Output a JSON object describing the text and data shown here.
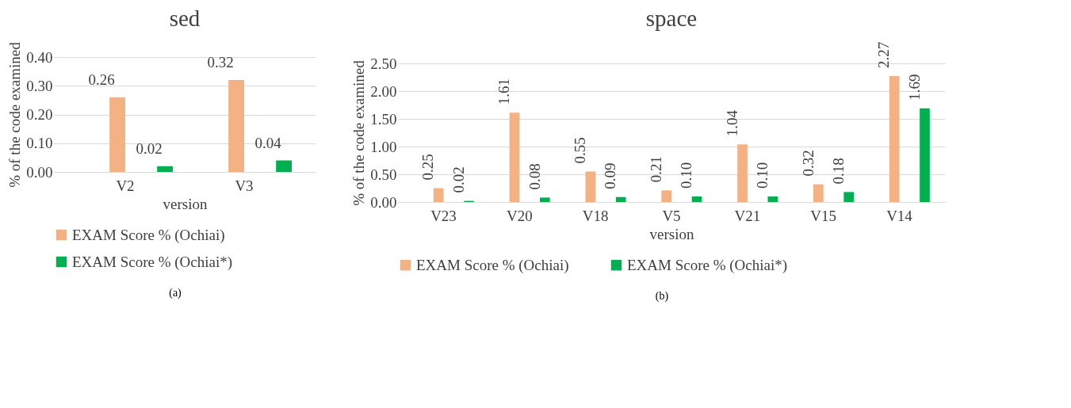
{
  "chart_data": [
    {
      "type": "bar",
      "title": "sed",
      "xlabel": "version",
      "ylabel": "% of the code examined",
      "categories": [
        "V2",
        "V3"
      ],
      "series": [
        {
          "name": "EXAM Score % (Ochiai)",
          "color": "#f4b183",
          "values": [
            0.26,
            0.32
          ],
          "value_labels": [
            "0.26",
            "0.32"
          ]
        },
        {
          "name": "EXAM Score % (Ochiai*)",
          "color": "#00b050",
          "values": [
            0.02,
            0.04
          ],
          "value_labels": [
            "0.02",
            "0.04"
          ]
        }
      ],
      "ylim": [
        0,
        0.4
      ],
      "yticks": [
        {
          "value": 0,
          "label": "0.00"
        },
        {
          "value": 0.1,
          "label": "0.10"
        },
        {
          "value": 0.2,
          "label": "0.20"
        },
        {
          "value": 0.3,
          "label": "0.30"
        },
        {
          "value": 0.4,
          "label": "0.40"
        }
      ],
      "grid": "y",
      "legend": "bottom",
      "annotations": [
        "(a)"
      ]
    },
    {
      "type": "bar",
      "title": "space",
      "xlabel": "version",
      "ylabel": "% of the code examined",
      "categories": [
        "V23",
        "V20",
        "V18",
        "V5",
        "V21",
        "V15",
        "V14"
      ],
      "series": [
        {
          "name": "EXAM Score % (Ochiai)",
          "color": "#f4b183",
          "values": [
            0.25,
            1.61,
            0.55,
            0.21,
            1.04,
            0.32,
            2.27
          ],
          "value_labels": [
            "0.25",
            "1.61",
            "0.55",
            "0.21",
            "1.04",
            "0.32",
            "2.27"
          ]
        },
        {
          "name": "EXAM Score % (Ochiai*)",
          "color": "#00b050",
          "values": [
            0.02,
            0.08,
            0.09,
            0.1,
            0.1,
            0.18,
            1.69
          ],
          "value_labels": [
            "0.02",
            "0.08",
            "0.09",
            "0.10",
            "0.10",
            "0.18",
            "1.69"
          ]
        }
      ],
      "ylim": [
        0,
        2.5
      ],
      "yticks": [
        {
          "value": 0,
          "label": "0.00"
        },
        {
          "value": 0.5,
          "label": "0.50"
        },
        {
          "value": 1,
          "label": "1.00"
        },
        {
          "value": 1.5,
          "label": "1.50"
        },
        {
          "value": 2,
          "label": "2.00"
        },
        {
          "value": 2.5,
          "label": "2.50"
        }
      ],
      "grid": "y",
      "legend": "bottom",
      "annotations": [
        "(b)"
      ]
    }
  ]
}
